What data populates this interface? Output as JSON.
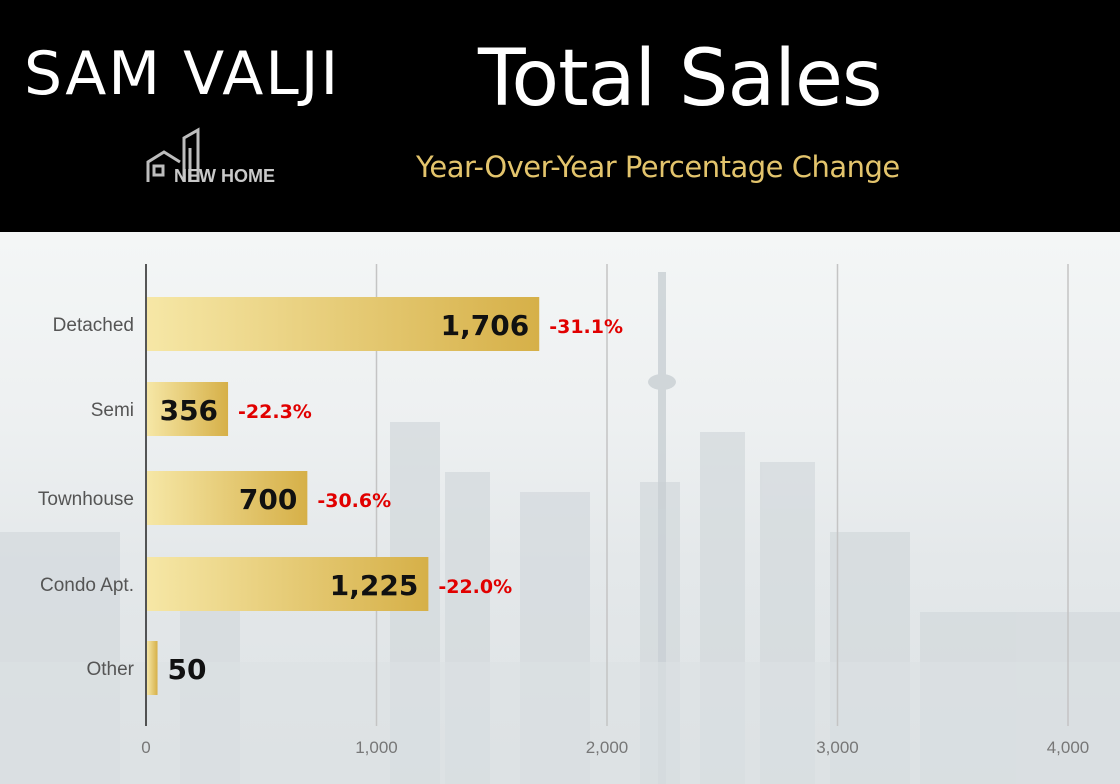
{
  "header": {
    "brand_name": "SAM VALJI",
    "logo_text": "NEW HOME"
  },
  "chart_data": {
    "type": "bar",
    "orientation": "horizontal",
    "title": "Total Sales",
    "subtitle": "Year-Over-Year Percentage Change",
    "categories": [
      "Detached",
      "Semi",
      "Townhouse",
      "Condo Apt.",
      "Other"
    ],
    "values": [
      1706,
      356,
      700,
      1225,
      50
    ],
    "value_labels": [
      "1,706",
      "356",
      "700",
      "1,225",
      "50"
    ],
    "changes": [
      "-31.1%",
      "-22.3%",
      "-30.6%",
      "-22.0%",
      ""
    ],
    "xlim": [
      0,
      4000
    ],
    "x_ticks": [
      0,
      1000,
      2000,
      3000,
      4000
    ],
    "x_tick_labels": [
      "0",
      "1,000",
      "2,000",
      "3,000",
      "4,000"
    ],
    "grid": "vertical",
    "legend": "none",
    "bar_color_light": "#f6e7a6",
    "bar_color_dark": "#d6b048",
    "change_color": "#e10000",
    "subtitle_color": "#e3c46c"
  }
}
